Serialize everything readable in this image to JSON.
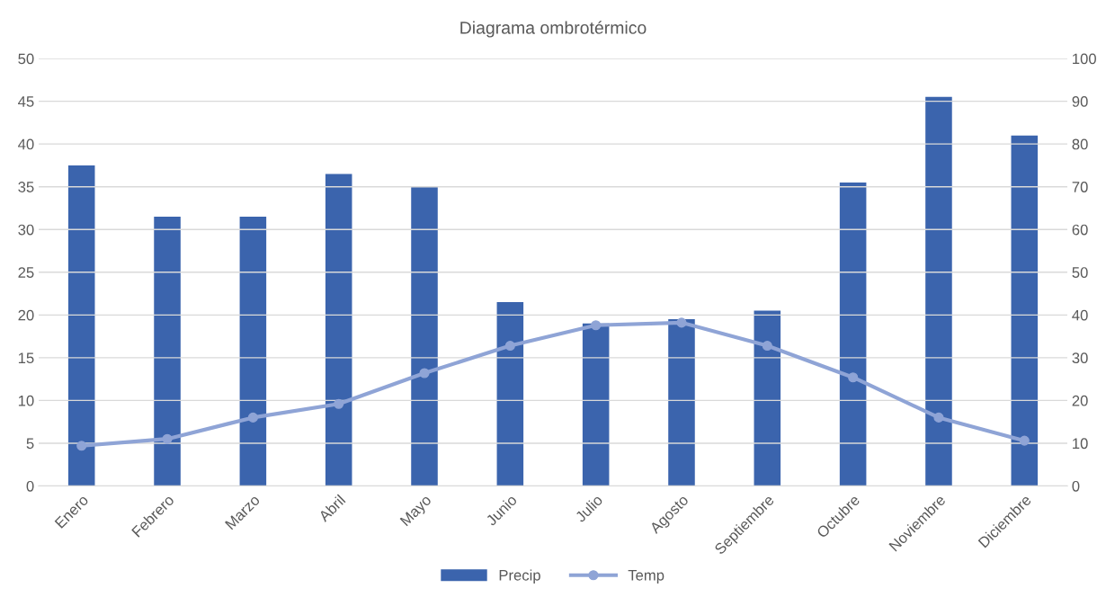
{
  "chart_data": {
    "type": "bar",
    "title": "Diagrama ombrotérmico",
    "categories": [
      "Enero",
      "Febrero",
      "Marzo",
      "Abril",
      "Mayo",
      "Junio",
      "Julio",
      "Agosto",
      "Septiembre",
      "Octubre",
      "Noviembre",
      "Diciembre"
    ],
    "series": [
      {
        "name": "Precip",
        "axis": "y2",
        "color": "#3b64ad",
        "values": [
          75,
          63,
          63,
          73,
          70,
          43,
          38,
          39,
          41,
          71,
          91,
          82
        ]
      },
      {
        "name": "Temp",
        "type": "line",
        "color": "#8fa4d6",
        "marker": "circle",
        "values": [
          4.7,
          5.5,
          8.0,
          9.6,
          13.2,
          16.4,
          18.8,
          19.1,
          16.4,
          12.7,
          8.0,
          5.3
        ]
      }
    ],
    "ylim": [
      0,
      50
    ],
    "yticks": [
      0,
      5,
      10,
      15,
      20,
      25,
      30,
      35,
      40,
      45,
      50
    ],
    "y2lim": [
      0,
      100
    ],
    "y2ticks": [
      0,
      10,
      20,
      30,
      40,
      50,
      60,
      70,
      80,
      90,
      100
    ],
    "grid": "y",
    "legend": "bottom"
  }
}
